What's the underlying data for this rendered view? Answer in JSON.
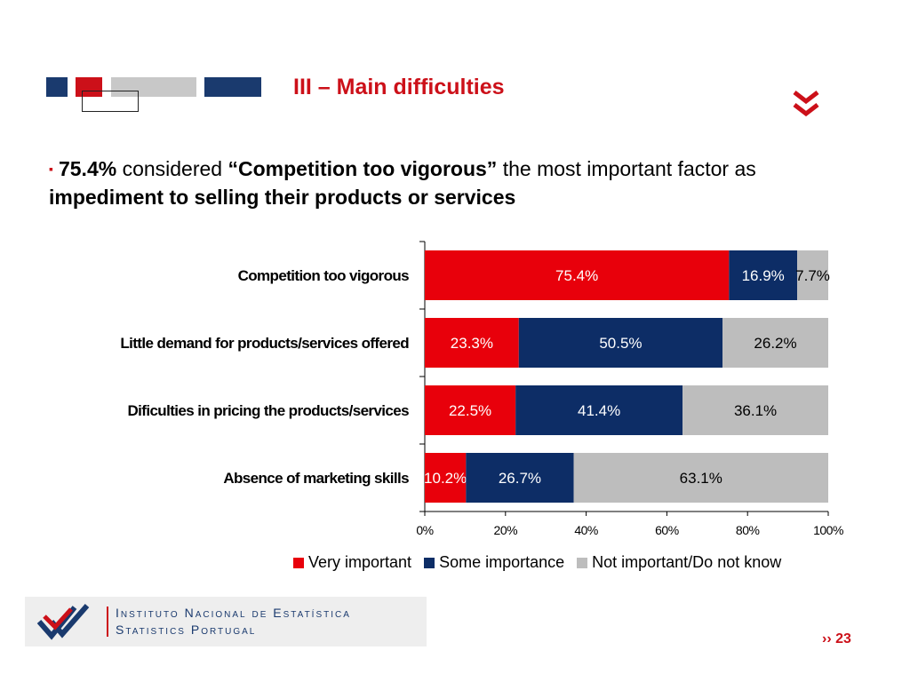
{
  "slide": {
    "title": "III – Main difficulties",
    "page_number": "23",
    "page_marker": "››"
  },
  "bullet": {
    "marker": "▪",
    "pct": "75.4%",
    "t1": " considered ",
    "quote": "“Competition too vigorous”",
    "t2": " the most important factor as ",
    "bold_end": "impediment to selling their products or services"
  },
  "logo": {
    "line1": "Instituto Nacional de Estatística",
    "line2": "Statistics Portugal"
  },
  "colors": {
    "accent_red": "#cc1019",
    "navy": "#1a3a6e",
    "very_important": "#e8000b",
    "some_importance": "#0d2d66",
    "not_important": "#bdbdbd"
  },
  "chart_data": {
    "type": "bar",
    "orientation": "horizontal",
    "stacked": true,
    "categories": [
      "Competition too vigorous",
      "Little demand for products/services offered",
      "Dificulties in pricing the products/services",
      "Absence of marketing skills"
    ],
    "series": [
      {
        "name": "Very important",
        "values": [
          75.4,
          23.3,
          22.5,
          10.2
        ],
        "labels": [
          "75.4%",
          "23.3%",
          "22.5%",
          "10.2%"
        ],
        "color": "#e8000b",
        "label_color": "#ffffff"
      },
      {
        "name": "Some importance",
        "values": [
          16.9,
          50.5,
          41.4,
          26.7
        ],
        "labels": [
          "16.9%",
          "50.5%",
          "41.4%",
          "26.7%"
        ],
        "color": "#0d2d66",
        "label_color": "#ffffff"
      },
      {
        "name": "Not important/Do not know",
        "values": [
          7.7,
          26.2,
          36.1,
          63.1
        ],
        "labels": [
          "7.7%",
          "26.2%",
          "36.1%",
          "63.1%"
        ],
        "color": "#bdbdbd",
        "label_color": "#000000"
      }
    ],
    "xlim": [
      0,
      100
    ],
    "xticks": [
      "0%",
      "20%",
      "40%",
      "60%",
      "80%",
      "100%"
    ],
    "grid": false,
    "legend_position": "bottom"
  }
}
